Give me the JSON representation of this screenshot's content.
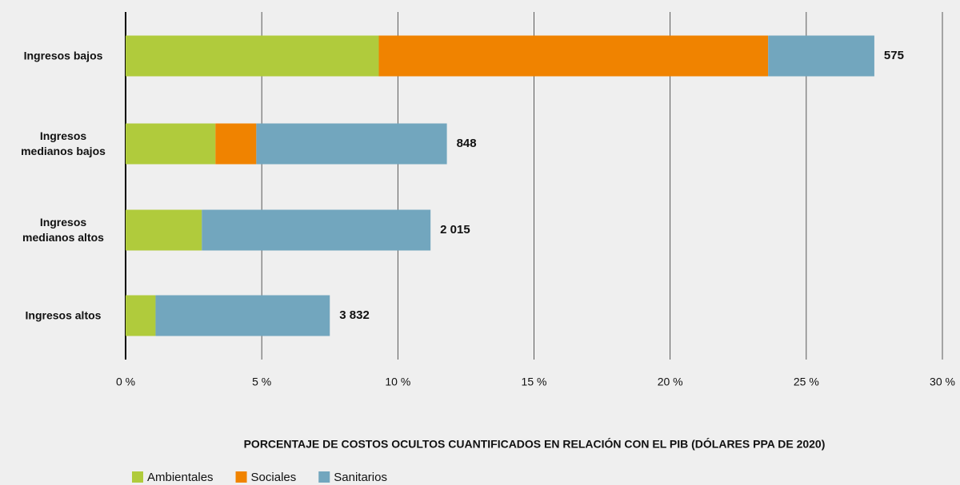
{
  "chart_data": {
    "type": "stacked-bar-horizontal",
    "x_label": "PORCENTAJE DE COSTOS OCULTOS CUANTIFICADOS EN RELACIÓN CON EL PIB (DÓLARES PPA DE 2020)",
    "categories": [
      "Ingresos bajos",
      "Ingresos medianos bajos",
      "Ingresos medianos altos",
      "Ingresos altos"
    ],
    "series": [
      {
        "name": "Ambientales",
        "color": "#b0cb3c",
        "values": [
          9.3,
          3.3,
          2.8,
          1.1
        ]
      },
      {
        "name": "Sociales",
        "color": "#f08300",
        "values": [
          14.3,
          1.5,
          0,
          0
        ]
      },
      {
        "name": "Sanitarios",
        "color": "#72a6be",
        "values": [
          3.9,
          7.0,
          8.4,
          6.4
        ]
      }
    ],
    "annotations": [
      "575",
      "848",
      "2 015",
      "3 832"
    ],
    "xlim": [
      0,
      30
    ],
    "xticks": [
      {
        "value": 0,
        "label": "0 %"
      },
      {
        "value": 5,
        "label": "5 %"
      },
      {
        "value": 10,
        "label": "10 %"
      },
      {
        "value": 15,
        "label": "15 %"
      },
      {
        "value": 20,
        "label": "20 %"
      },
      {
        "value": 25,
        "label": "25 %"
      },
      {
        "value": 30,
        "label": "30 %"
      }
    ],
    "grid": true,
    "legend": "bottom-left"
  }
}
